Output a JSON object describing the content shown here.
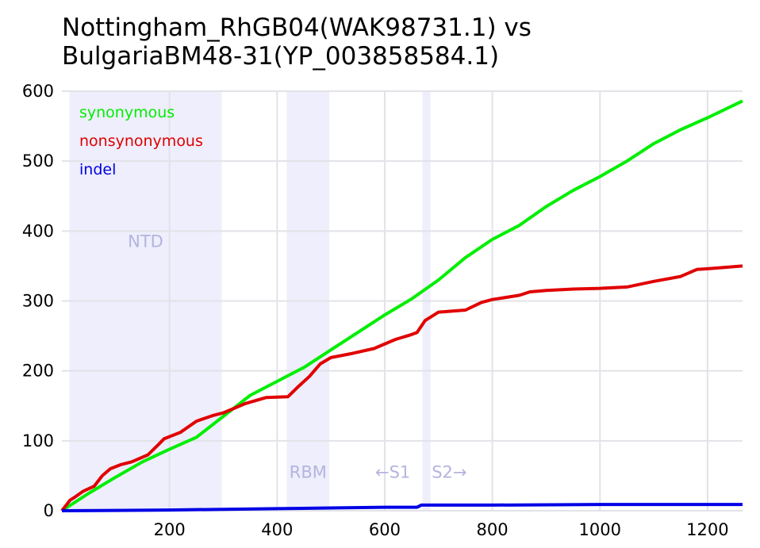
{
  "chart_data": {
    "type": "line",
    "title_lines": [
      "Nottingham_RhGB04(WAK98731.1) vs",
      "BulgariaBM48-31(YP_003858584.1)"
    ],
    "xlabel": "",
    "ylabel": "",
    "xlim": [
      0,
      1265
    ],
    "ylim": [
      0,
      600
    ],
    "x_ticks": [
      200,
      400,
      600,
      800,
      1000,
      1200
    ],
    "y_ticks": [
      0,
      100,
      200,
      300,
      400,
      500,
      600
    ],
    "grid": true,
    "legend_position": "top-left",
    "regions": [
      {
        "label": "NTD",
        "start": 14,
        "end": 297,
        "label_pos": "middle"
      },
      {
        "label": "RBM",
        "start": 418,
        "end": 497,
        "label_pos": "bottom"
      },
      {
        "label": "",
        "start": 670,
        "end": 685,
        "label_pos": "none"
      }
    ],
    "annotations": [
      {
        "text": "←S1",
        "x": 615,
        "y": 55
      },
      {
        "text": "S2→",
        "x": 720,
        "y": 55
      }
    ],
    "series": [
      {
        "name": "synonymous",
        "color": "#00ee00",
        "x": [
          0,
          20,
          50,
          100,
          150,
          200,
          250,
          300,
          350,
          400,
          450,
          500,
          550,
          600,
          650,
          700,
          750,
          800,
          850,
          900,
          950,
          1000,
          1050,
          1100,
          1150,
          1200,
          1265
        ],
        "y": [
          0,
          10,
          25,
          48,
          70,
          88,
          105,
          135,
          165,
          185,
          205,
          230,
          255,
          280,
          303,
          330,
          362,
          388,
          408,
          435,
          458,
          478,
          500,
          525,
          545,
          562,
          586
        ]
      },
      {
        "name": "nonsynonymous",
        "color": "#e00000",
        "x": [
          0,
          15,
          25,
          40,
          60,
          75,
          90,
          110,
          130,
          160,
          180,
          190,
          220,
          250,
          280,
          300,
          340,
          380,
          420,
          440,
          460,
          480,
          500,
          540,
          580,
          620,
          650,
          660,
          675,
          700,
          750,
          780,
          800,
          850,
          870,
          900,
          950,
          1000,
          1050,
          1100,
          1150,
          1180,
          1200,
          1265
        ],
        "y": [
          0,
          15,
          20,
          28,
          35,
          50,
          60,
          66,
          70,
          80,
          95,
          103,
          112,
          128,
          136,
          140,
          153,
          162,
          163,
          178,
          192,
          210,
          219,
          225,
          232,
          245,
          252,
          255,
          272,
          284,
          287,
          298,
          302,
          308,
          313,
          315,
          317,
          318,
          320,
          328,
          335,
          345,
          346,
          350
        ]
      },
      {
        "name": "indel",
        "color": "#0000e6",
        "x": [
          0,
          100,
          200,
          300,
          400,
          500,
          600,
          660,
          668,
          800,
          1000,
          1265
        ],
        "y": [
          0,
          0.5,
          1,
          2,
          3,
          4,
          5,
          5,
          8,
          8,
          9,
          9
        ]
      }
    ]
  }
}
